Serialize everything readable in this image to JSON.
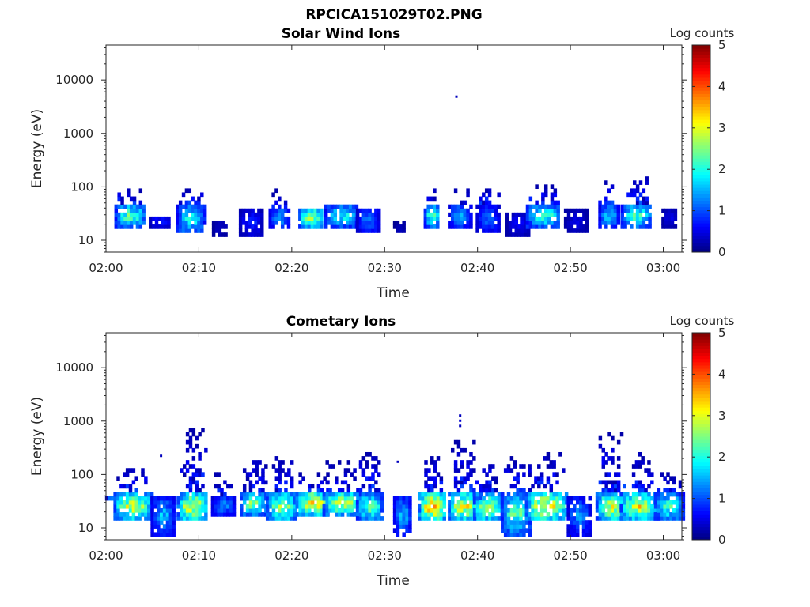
{
  "figure_title": "RPCICA151029T02.PNG",
  "chart_data": [
    {
      "type": "heatmap",
      "title": "Solar Wind Ions",
      "xlabel": "Time",
      "ylabel": "Energy (eV)",
      "x_range": [
        "02:00",
        "03:02"
      ],
      "y_scale": "log",
      "ylim": [
        6,
        45000
      ],
      "x_ticks": [
        "02:00",
        "02:10",
        "02:20",
        "02:30",
        "02:40",
        "02:50",
        "03:00"
      ],
      "y_ticks": [
        "10",
        "100",
        "1000",
        "10000"
      ],
      "colorbar": {
        "label": "Log counts",
        "range": [
          0,
          5
        ],
        "ticks": [
          "0",
          "1",
          "2",
          "3",
          "4",
          "5"
        ],
        "colormap": "jet"
      },
      "bursts": [
        {
          "t": 2.5,
          "emin": 16,
          "emax": 45,
          "peak": 2.4,
          "w": 1.6,
          "upper": 85
        },
        {
          "t": 5.7,
          "emin": 16,
          "emax": 27,
          "peak": 0.8,
          "w": 1.1
        },
        {
          "t": 9.0,
          "emin": 12,
          "emax": 45,
          "peak": 2.0,
          "w": 1.5,
          "upper": 85
        },
        {
          "t": 12.2,
          "emin": 11,
          "emax": 22,
          "peak": 0.4,
          "w": 0.8
        },
        {
          "t": 15.5,
          "emin": 11,
          "emax": 38,
          "peak": 0.8,
          "w": 1.2
        },
        {
          "t": 18.5,
          "emin": 16,
          "emax": 38,
          "peak": 1.6,
          "w": 1.0,
          "upper": 80
        },
        {
          "t": 22.0,
          "emin": 16,
          "emax": 38,
          "peak": 2.8,
          "w": 1.3
        },
        {
          "t": 25.3,
          "emin": 16,
          "emax": 45,
          "peak": 2.0,
          "w": 1.8
        },
        {
          "t": 28.1,
          "emin": 12,
          "emax": 38,
          "peak": 1.2,
          "w": 1.2
        },
        {
          "t": 31.5,
          "emin": 12,
          "emax": 20,
          "peak": 0.3,
          "w": 0.6
        },
        {
          "t": 35.0,
          "emin": 16,
          "emax": 45,
          "peak": 2.4,
          "w": 0.8,
          "upper": 90
        },
        {
          "t": 38.0,
          "emin": 16,
          "emax": 45,
          "peak": 1.6,
          "w": 1.2,
          "upper": 90
        },
        {
          "t": 41.0,
          "emin": 12,
          "emax": 45,
          "peak": 1.2,
          "w": 1.2,
          "upper": 90
        },
        {
          "t": 44.2,
          "emin": 11,
          "emax": 32,
          "peak": 0.6,
          "w": 1.2
        },
        {
          "t": 47.0,
          "emin": 16,
          "emax": 45,
          "peak": 2.2,
          "w": 1.8,
          "upper": 100
        },
        {
          "t": 50.5,
          "emin": 12,
          "emax": 38,
          "peak": 0.5,
          "w": 1.2
        },
        {
          "t": 54.0,
          "emin": 16,
          "emax": 45,
          "peak": 1.8,
          "w": 1.0,
          "upper": 120
        },
        {
          "t": 57.0,
          "emin": 16,
          "emax": 45,
          "peak": 2.3,
          "w": 1.6,
          "upper": 170
        },
        {
          "t": 60.6,
          "emin": 16,
          "emax": 38,
          "peak": 0.5,
          "w": 0.8
        }
      ],
      "isolated_points": [
        {
          "t": 37.6,
          "e": 4800,
          "v": 0.3
        }
      ]
    },
    {
      "type": "heatmap",
      "title": "Cometary Ions",
      "xlabel": "Time",
      "ylabel": "Energy (eV)",
      "x_range": [
        "02:00",
        "03:02"
      ],
      "y_scale": "log",
      "ylim": [
        6,
        45000
      ],
      "x_ticks": [
        "02:00",
        "02:10",
        "02:20",
        "02:30",
        "02:40",
        "02:50",
        "03:00"
      ],
      "y_ticks": [
        "10",
        "100",
        "1000",
        "10000"
      ],
      "colorbar": {
        "label": "Log counts",
        "range": [
          0,
          5
        ],
        "ticks": [
          "0",
          "1",
          "2",
          "3",
          "4",
          "5"
        ],
        "colormap": "jet"
      },
      "bursts": [
        {
          "t": 0.5,
          "emin": 30,
          "emax": 38,
          "peak": 1.2,
          "w": 0.6
        },
        {
          "t": 2.8,
          "emin": 12,
          "emax": 45,
          "peak": 3.0,
          "w": 2.0,
          "upper": 130
        },
        {
          "t": 6.0,
          "emin": 7,
          "emax": 38,
          "peak": 1.6,
          "w": 1.2
        },
        {
          "t": 9.2,
          "emin": 12,
          "emax": 45,
          "peak": 3.2,
          "w": 1.6,
          "upper": 650
        },
        {
          "t": 12.5,
          "emin": 16,
          "emax": 38,
          "peak": 1.4,
          "w": 1.2,
          "upper": 110
        },
        {
          "t": 15.8,
          "emin": 16,
          "emax": 45,
          "peak": 2.6,
          "w": 1.4,
          "upper": 220
        },
        {
          "t": 18.8,
          "emin": 12,
          "emax": 45,
          "peak": 2.8,
          "w": 1.6,
          "upper": 220
        },
        {
          "t": 22.2,
          "emin": 16,
          "emax": 45,
          "peak": 3.4,
          "w": 1.8,
          "upper": 100
        },
        {
          "t": 25.3,
          "emin": 16,
          "emax": 45,
          "peak": 3.0,
          "w": 2.0,
          "upper": 160
        },
        {
          "t": 28.3,
          "emin": 12,
          "emax": 45,
          "peak": 2.4,
          "w": 1.4,
          "upper": 260
        },
        {
          "t": 31.8,
          "emin": 7,
          "emax": 38,
          "peak": 1.6,
          "w": 0.9
        },
        {
          "t": 35.0,
          "emin": 12,
          "emax": 45,
          "peak": 3.6,
          "w": 1.4,
          "upper": 200
        },
        {
          "t": 38.5,
          "emin": 12,
          "emax": 45,
          "peak": 3.2,
          "w": 1.7,
          "upper": 380
        },
        {
          "t": 41.0,
          "emin": 12,
          "emax": 45,
          "peak": 2.8,
          "w": 1.5,
          "upper": 200
        },
        {
          "t": 44.0,
          "emin": 7,
          "emax": 45,
          "peak": 2.4,
          "w": 1.5,
          "upper": 200
        },
        {
          "t": 47.3,
          "emin": 12,
          "emax": 45,
          "peak": 3.3,
          "w": 2.2,
          "upper": 260
        },
        {
          "t": 50.8,
          "emin": 7,
          "emax": 38,
          "peak": 1.4,
          "w": 1.2
        },
        {
          "t": 54.3,
          "emin": 12,
          "emax": 45,
          "peak": 3.0,
          "w": 1.6,
          "upper": 550
        },
        {
          "t": 57.3,
          "emin": 12,
          "emax": 45,
          "peak": 3.1,
          "w": 2.0,
          "upper": 300
        },
        {
          "t": 60.5,
          "emin": 12,
          "emax": 45,
          "peak": 2.2,
          "w": 1.5,
          "upper": 100
        }
      ],
      "isolated_points": [
        {
          "t": 38.0,
          "e": 1250,
          "v": 0.3
        },
        {
          "t": 38.0,
          "e": 1000,
          "v": 0.4
        },
        {
          "t": 38.0,
          "e": 800,
          "v": 0.3
        },
        {
          "t": 5.8,
          "e": 220,
          "v": 0.3
        },
        {
          "t": 31.3,
          "e": 170,
          "v": 0.3
        }
      ]
    }
  ]
}
